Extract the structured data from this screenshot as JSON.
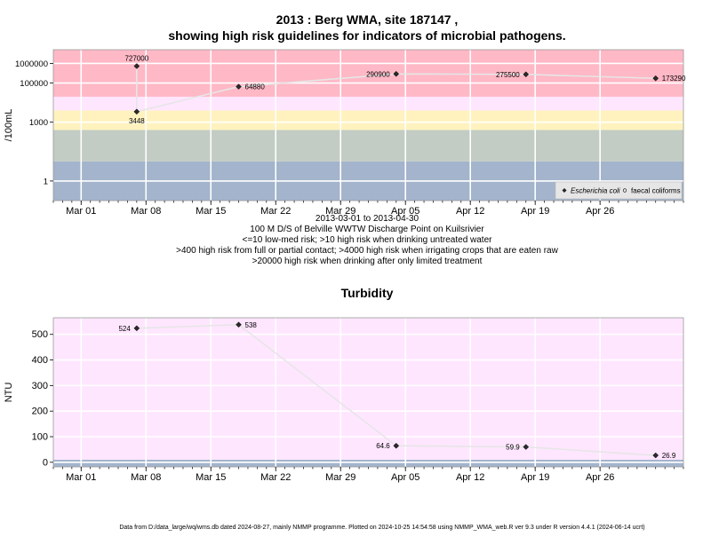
{
  "page": {
    "title_line1": "2013 : Berg WMA, site 187147 ,",
    "title_line2": "showing high risk guidelines for indicators of microbial pathogens.",
    "date_range": "2013-03-01 to 2013-04-30",
    "site_description": "100 M D/S of Belville WWTW Discharge Point on Kuilsrivier",
    "notes": [
      "<=10 low-med risk; >10 high risk when drinking untreated water",
      ">400 high risk from full or partial contact; >4000 high risk when irrigating crops that are eaten raw",
      ">20000 high risk when drinking after only limited treatment"
    ],
    "footer": "Data from D:/data_large/wq/wms.db dated 2024-08-27, mainly NMMP programme. Plotted on 2024-10-25 14:54:58 using NMMP_WMA_web.R ver 9.3 under R version 4.4.1 (2024-06-14 ucrt)"
  },
  "chart_data": [
    {
      "type": "scatter",
      "title": "",
      "ylabel": "/100mL",
      "xlabel": "",
      "y_scale": "log10",
      "ylim": [
        0.1,
        5000000
      ],
      "xlim": [
        "2013-02-26",
        "2013-05-05"
      ],
      "x_ticks": [
        "Mar 01",
        "Mar 08",
        "Mar 15",
        "Mar 22",
        "Mar 29",
        "Apr 05",
        "Apr 12",
        "Apr 19",
        "Apr 26"
      ],
      "x_tick_dates": [
        "2013-03-01",
        "2013-03-08",
        "2013-03-15",
        "2013-03-22",
        "2013-03-29",
        "2013-04-05",
        "2013-04-12",
        "2013-04-19",
        "2013-04-26"
      ],
      "y_ticks": [
        1,
        1000,
        100000,
        1000000
      ],
      "y_tick_labels": [
        "1",
        "1000",
        "100000",
        "1000000"
      ],
      "grid": true,
      "legend_position": "bottom-right",
      "risk_bands": [
        {
          "from": 0.1,
          "to": 10,
          "color": "#a3b4cc"
        },
        {
          "from": 10,
          "to": 400,
          "color": "#c2ccc4"
        },
        {
          "from": 400,
          "to": 4000,
          "color": "#fff2be"
        },
        {
          "from": 4000,
          "to": 20000,
          "color": "#ffe6ff"
        },
        {
          "from": 20000,
          "to": 5000000,
          "color": "#ffb8c6"
        }
      ],
      "series": [
        {
          "name": "Escherichia coli",
          "marker": "filled-diamond",
          "x": [
            "2013-03-07",
            "2013-03-07",
            "2013-03-18",
            "2013-04-04",
            "2013-04-18",
            "2013-05-02"
          ],
          "y": [
            727000,
            3448,
            64880,
            290900,
            275500,
            173290
          ],
          "labels": [
            "727000",
            "3448",
            "64880",
            "290900",
            "275500",
            "173290"
          ],
          "label_side": [
            "above",
            "below",
            "right",
            "left",
            "left",
            "right"
          ]
        },
        {
          "name": "faecal coliforms",
          "marker": "open-circle",
          "x": [],
          "y": []
        }
      ]
    },
    {
      "type": "line",
      "title": "Turbidity",
      "ylabel": "NTU",
      "xlabel": "",
      "ylim": [
        -18,
        565
      ],
      "xlim": [
        "2013-02-26",
        "2013-05-05"
      ],
      "x_ticks": [
        "Mar 01",
        "Mar 08",
        "Mar 15",
        "Mar 22",
        "Mar 29",
        "Apr 05",
        "Apr 12",
        "Apr 19",
        "Apr 26"
      ],
      "x_tick_dates": [
        "2013-03-01",
        "2013-03-08",
        "2013-03-15",
        "2013-03-22",
        "2013-03-29",
        "2013-04-05",
        "2013-04-12",
        "2013-04-19",
        "2013-04-26"
      ],
      "y_ticks": [
        0,
        100,
        200,
        300,
        400,
        500
      ],
      "grid": true,
      "bands": [
        {
          "from": -18,
          "to": 10,
          "color": "#a3b4cc"
        },
        {
          "from": 10,
          "to": 565,
          "color": "#ffe6ff"
        }
      ],
      "series": [
        {
          "name": "",
          "x": [
            "2013-03-07",
            "2013-03-18",
            "2013-04-04",
            "2013-04-18",
            "2013-05-02"
          ],
          "y": [
            524,
            538,
            64.6,
            59.9,
            26.9
          ],
          "labels": [
            "524",
            "538",
            "64.6",
            "59.9",
            "26.9"
          ],
          "label_side": [
            "left",
            "right",
            "left",
            "left",
            "right"
          ]
        }
      ]
    }
  ]
}
